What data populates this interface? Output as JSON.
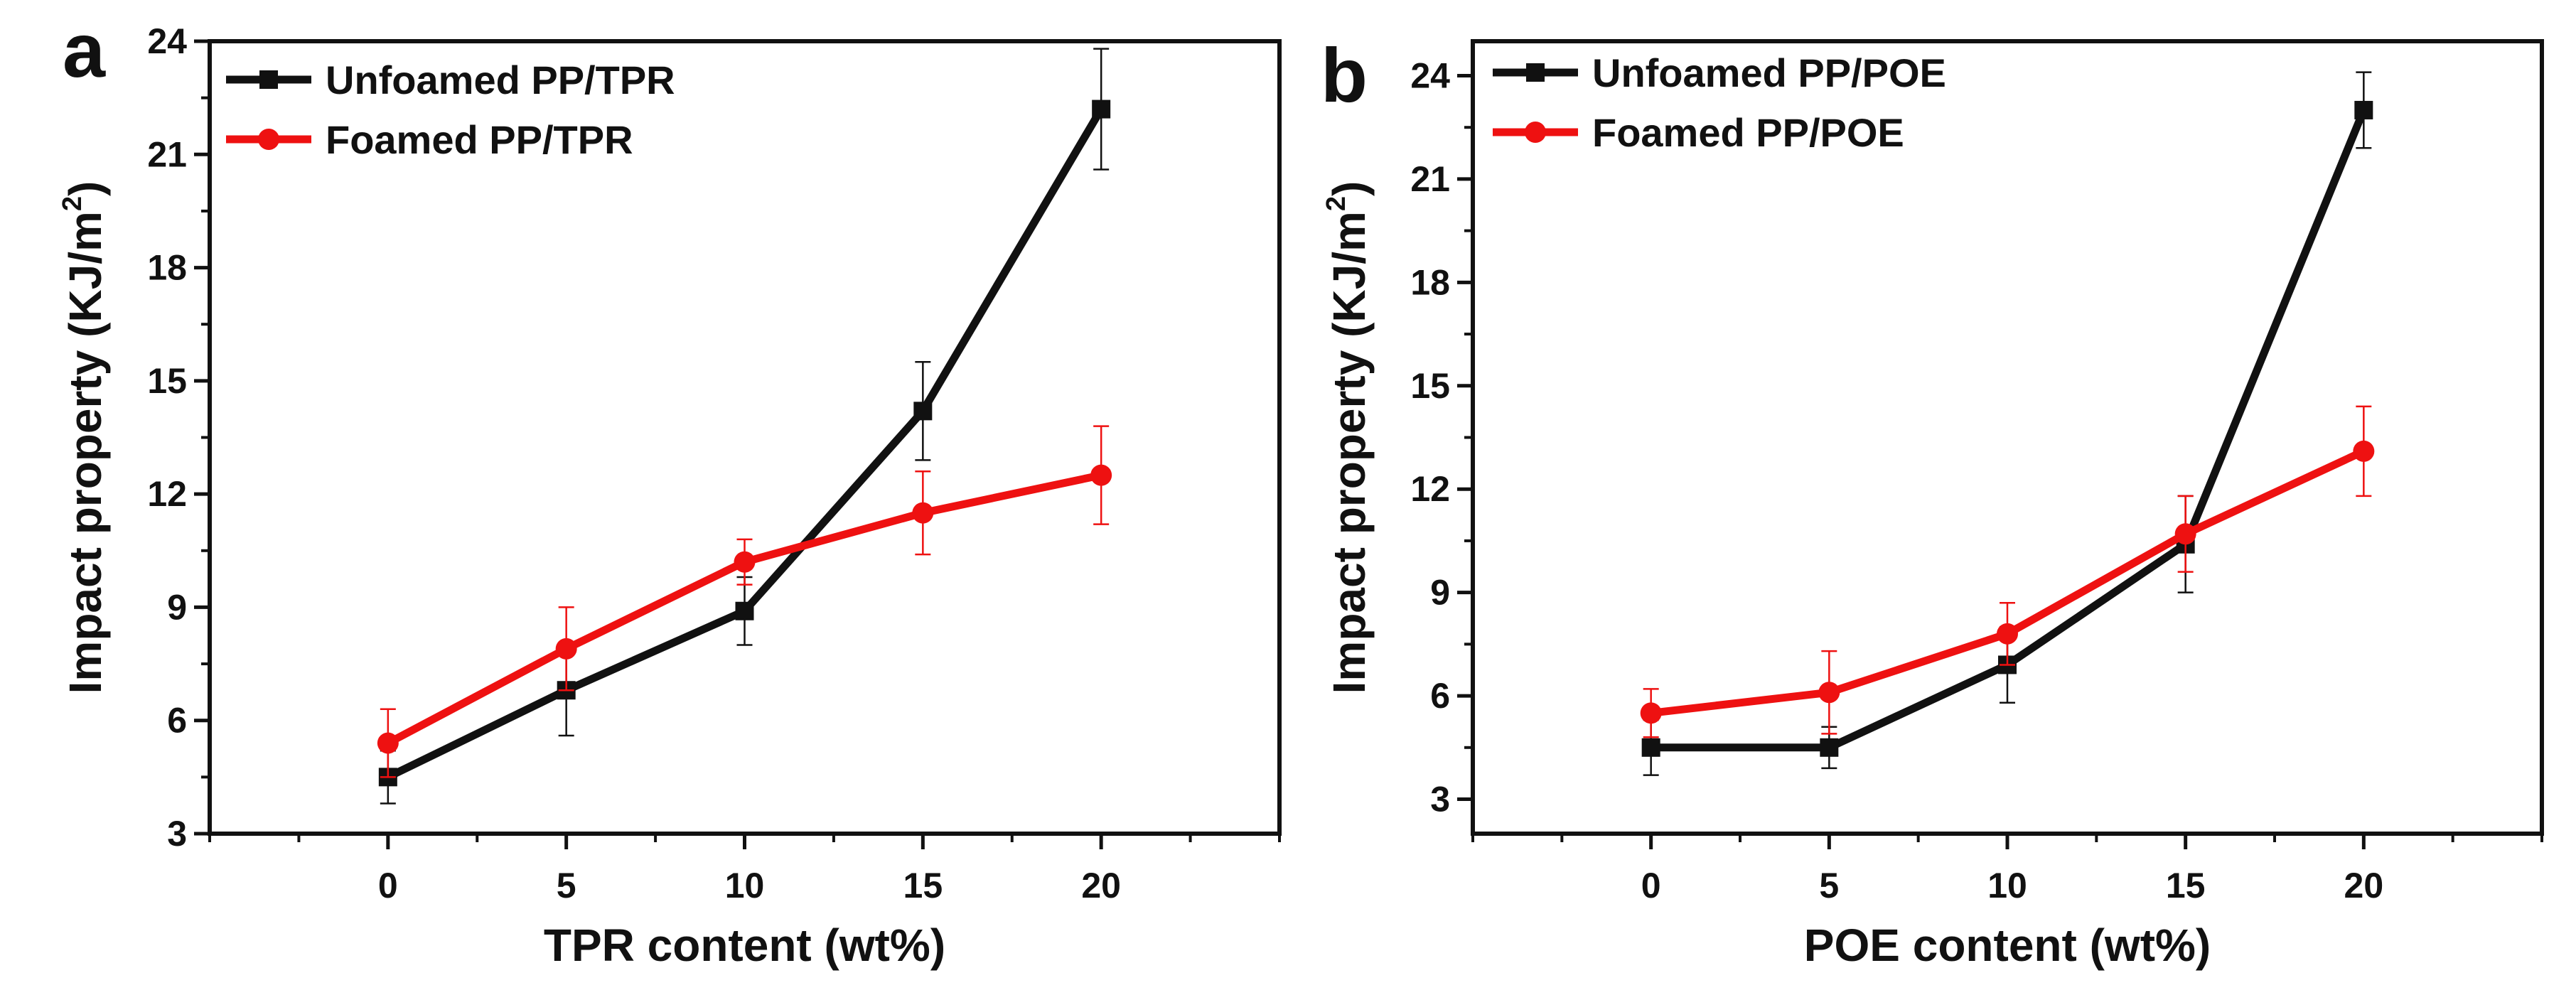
{
  "colors": {
    "unfoamed": "#111111",
    "foamed": "#ee1111",
    "axis": "#111111"
  },
  "chart_data": [
    {
      "type": "line",
      "panel_label": "a",
      "title": "",
      "xlabel": "TPR content (wt%)",
      "ylabel": "Impact property (KJ/m",
      "ylabel_sup": "2",
      "ylabel_end": ")",
      "xlim": [
        -5,
        25
      ],
      "ylim": [
        3,
        24
      ],
      "x_ticks": [
        0,
        5,
        10,
        15,
        20
      ],
      "x_tick_labels": [
        "0",
        "5",
        "10",
        "15",
        "20"
      ],
      "y_ticks": [
        3,
        6,
        9,
        12,
        15,
        18,
        21,
        24
      ],
      "y_tick_labels": [
        "3",
        "6",
        "9",
        "12",
        "15",
        "18",
        "21",
        "24"
      ],
      "legend_position": "top-left",
      "series": [
        {
          "name": "Unfoamed PP/TPR",
          "color_key": "unfoamed",
          "marker": "square",
          "x": [
            0,
            5,
            10,
            15,
            20
          ],
          "y": [
            4.5,
            6.8,
            8.9,
            14.2,
            22.2
          ],
          "err": [
            0.7,
            1.2,
            0.9,
            1.3,
            1.6
          ]
        },
        {
          "name": "Foamed PP/TPR",
          "color_key": "foamed",
          "marker": "circle",
          "x": [
            0,
            5,
            10,
            15,
            20
          ],
          "y": [
            5.4,
            7.9,
            10.2,
            11.5,
            12.5
          ],
          "err": [
            0.9,
            1.1,
            0.6,
            1.1,
            1.3
          ]
        }
      ]
    },
    {
      "type": "line",
      "panel_label": "b",
      "title": "",
      "xlabel": "POE content (wt%)",
      "ylabel": "Impact property (KJ/m",
      "ylabel_sup": "2",
      "ylabel_end": ")",
      "xlim": [
        -5,
        25
      ],
      "ylim": [
        2,
        25
      ],
      "x_ticks": [
        0,
        5,
        10,
        15,
        20
      ],
      "x_tick_labels": [
        "0",
        "5",
        "10",
        "15",
        "20"
      ],
      "y_ticks": [
        3,
        6,
        9,
        12,
        15,
        18,
        21,
        24
      ],
      "y_tick_labels": [
        "3",
        "6",
        "9",
        "12",
        "15",
        "18",
        "21",
        "24"
      ],
      "legend_position": "top-left",
      "series": [
        {
          "name": "Unfoamed PP/POE",
          "color_key": "unfoamed",
          "marker": "square",
          "x": [
            0,
            5,
            10,
            15,
            20
          ],
          "y": [
            4.5,
            4.5,
            6.9,
            10.4,
            23.0
          ],
          "err": [
            0.8,
            0.6,
            1.1,
            1.4,
            1.1
          ]
        },
        {
          "name": "Foamed PP/POE",
          "color_key": "foamed",
          "marker": "circle",
          "x": [
            0,
            5,
            10,
            15,
            20
          ],
          "y": [
            5.5,
            6.1,
            7.8,
            10.7,
            13.1
          ],
          "err": [
            0.7,
            1.2,
            0.9,
            1.1,
            1.3
          ]
        }
      ]
    }
  ]
}
